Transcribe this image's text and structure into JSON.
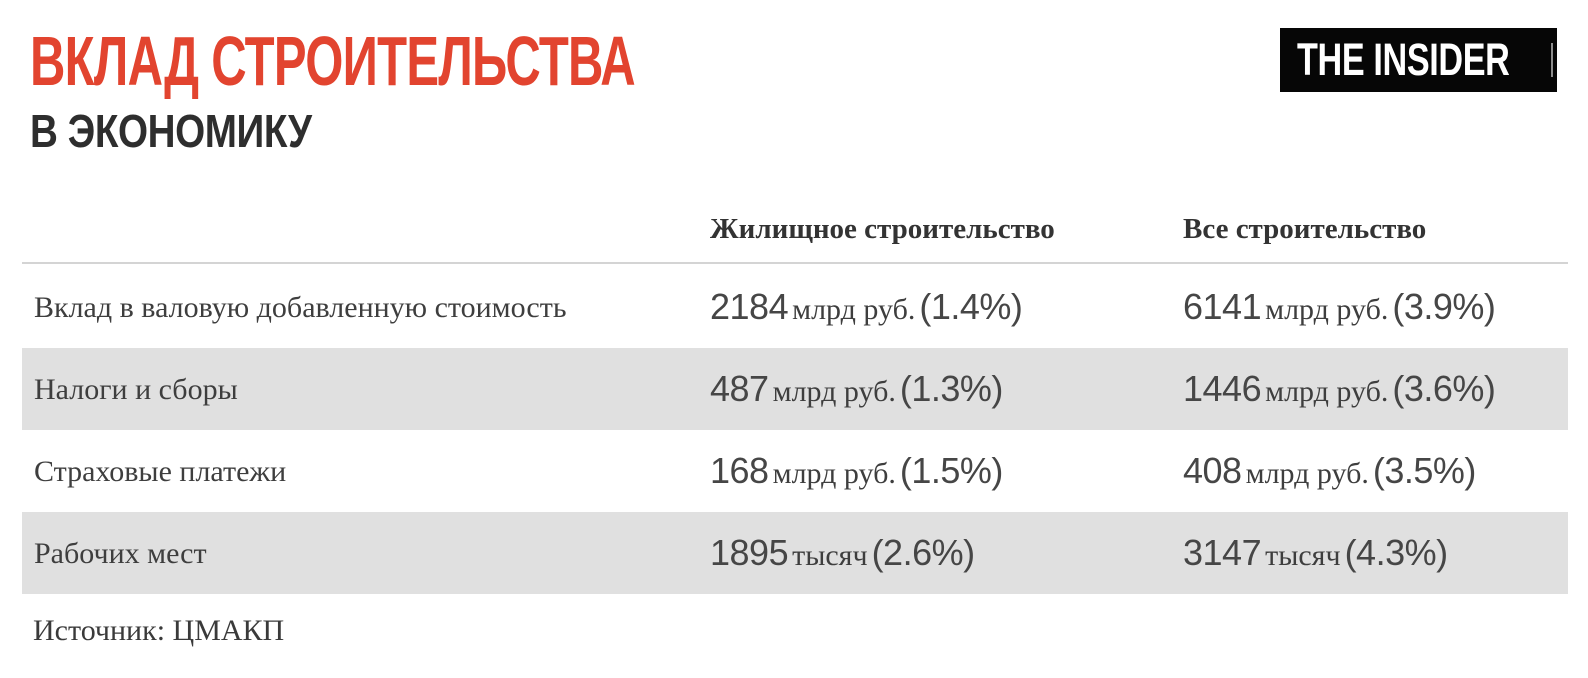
{
  "header": {
    "title_line1": "ВКЛАД СТРОИТЕЛЬСТВА",
    "title_line2": "В ЭКОНОМИКУ",
    "logo_text": "THE INSIDER"
  },
  "table": {
    "columns": {
      "housing": "Жилищное строительство",
      "all": "Все строительство"
    },
    "rows": [
      {
        "label": "Вклад в валовую добавленную стоимость",
        "housing": {
          "num": "2184",
          "unit": "млрд руб.",
          "pct": "(1.4%)"
        },
        "all": {
          "num": "6141",
          "unit": "млрд руб.",
          "pct": "(3.9%)"
        }
      },
      {
        "label": "Налоги и сборы",
        "housing": {
          "num": "487",
          "unit": "млрд руб.",
          "pct": "(1.3%)"
        },
        "all": {
          "num": "1446",
          "unit": "млрд руб.",
          "pct": "(3.6%)"
        }
      },
      {
        "label": "Страховые платежи",
        "housing": {
          "num": "168",
          "unit": "млрд руб.",
          "pct": "(1.5%)"
        },
        "all": {
          "num": "408",
          "unit": "млрд руб.",
          "pct": "(3.5%)"
        }
      },
      {
        "label": "Рабочих мест",
        "housing": {
          "num": "1895",
          "unit": "тысяч",
          "pct": "(2.6%)"
        },
        "all": {
          "num": "3147",
          "unit": "тысяч",
          "pct": "(4.3%)"
        }
      }
    ]
  },
  "footer": {
    "source": "Источник: ЦМАКП"
  },
  "colors": {
    "accent_red": "#E2442F",
    "row_stripe": "#E0E0E0",
    "divider": "#D4D4D4",
    "text_dark": "#3E3E3E",
    "logo_bg": "#060606",
    "logo_text": "#FFFFFF"
  },
  "chart_data": {
    "type": "table",
    "title": "Вклад строительства в экономику",
    "columns": [
      "",
      "Жилищное строительство",
      "Все строительство"
    ],
    "rows": [
      [
        "Вклад в валовую добавленную стоимость",
        "2184 млрд руб. (1.4%)",
        "6141 млрд руб. (3.9%)"
      ],
      [
        "Налоги и сборы",
        "487 млрд руб. (1.3%)",
        "1446 млрд руб. (3.6%)"
      ],
      [
        "Страховые платежи",
        "168 млрд руб. (1.5%)",
        "408 млрд руб. (3.5%)"
      ],
      [
        "Рабочих мест",
        "1895 тысяч (2.6%)",
        "3147 тысяч (4.3%)"
      ]
    ],
    "source": "Источник: ЦМАКП",
    "legend_position": "none",
    "grid": "row-stripes"
  }
}
